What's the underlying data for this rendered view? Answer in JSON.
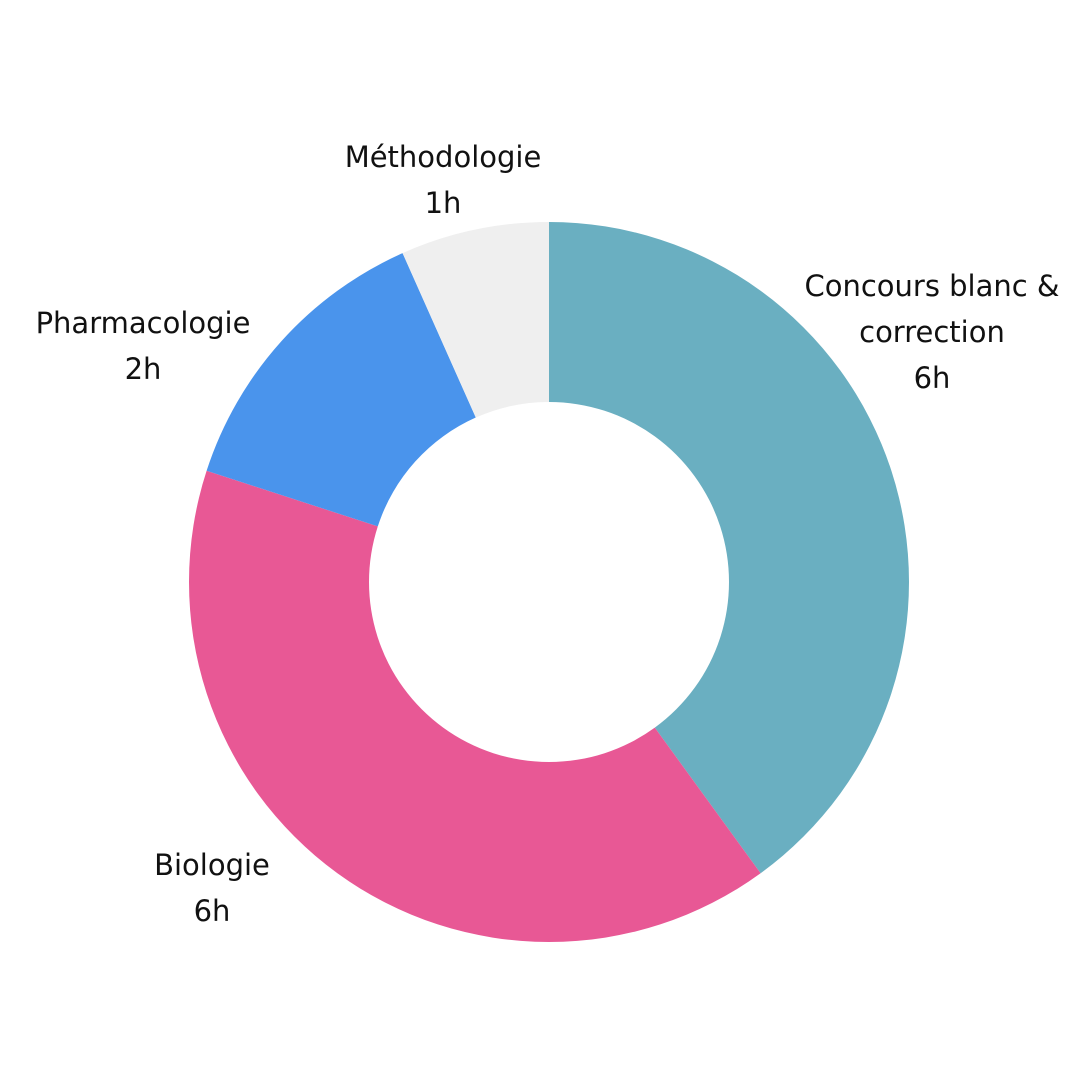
{
  "chart_data": {
    "type": "donut",
    "categories": [
      "Concours blanc & correction",
      "Biologie",
      "Pharmacologie",
      "Méthodologie"
    ],
    "values": [
      6,
      6,
      2,
      1
    ],
    "value_labels": [
      "6h",
      "6h",
      "2h",
      "1h"
    ],
    "colors": [
      "#6aafc1",
      "#e85895",
      "#4a94ec",
      "#efefef"
    ]
  }
}
